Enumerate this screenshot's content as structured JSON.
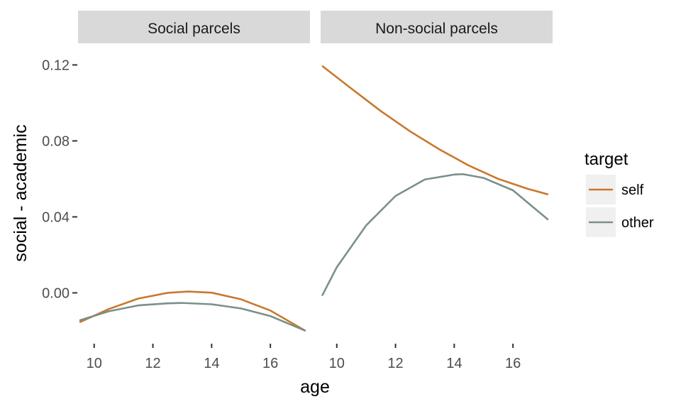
{
  "chart_data": {
    "type": "line",
    "xlabel": "age",
    "ylabel": "social - academic",
    "xlim": [
      9.45,
      17.35
    ],
    "ylim": [
      -0.026,
      0.131
    ],
    "x_ticks": [
      10,
      12,
      14,
      16
    ],
    "x_tick_labels": [
      "10",
      "12",
      "14",
      "16"
    ],
    "y_ticks": [
      0.0,
      0.04,
      0.08,
      0.12
    ],
    "y_tick_labels": [
      "0.00",
      "0.04",
      "0.08",
      "0.12"
    ],
    "grid": false,
    "legend": {
      "title": "target",
      "position": "right",
      "entries": [
        {
          "label": "self",
          "color": "#C8782F"
        },
        {
          "label": "other",
          "color": "#7A9088"
        }
      ]
    },
    "panels": [
      {
        "strip": "Social parcels",
        "series": [
          {
            "name": "self",
            "color": "#C8782F",
            "x": [
              9.5,
              10.5,
              11.5,
              12.5,
              13.2,
              14.0,
              15.0,
              16.0,
              17.2
            ],
            "y": [
              -0.0155,
              -0.0085,
              -0.003,
              0.0,
              0.0007,
              0.0001,
              -0.0034,
              -0.0093,
              -0.02
            ]
          },
          {
            "name": "other",
            "color": "#7A9088",
            "x": [
              9.5,
              10.5,
              11.5,
              12.5,
              13.0,
              14.0,
              15.0,
              16.0,
              17.2
            ],
            "y": [
              -0.0145,
              -0.0097,
              -0.0066,
              -0.0055,
              -0.0053,
              -0.006,
              -0.0082,
              -0.0122,
              -0.02
            ]
          }
        ]
      },
      {
        "strip": "Non-social parcels",
        "series": [
          {
            "name": "self",
            "color": "#C8782F",
            "x": [
              9.5,
              10.5,
              11.5,
              12.5,
              13.5,
              14.5,
              15.5,
              16.5,
              17.2
            ],
            "y": [
              0.1195,
              0.1075,
              0.0957,
              0.085,
              0.0755,
              0.067,
              0.06,
              0.0548,
              0.0518
            ]
          },
          {
            "name": "other",
            "color": "#7A9088",
            "x": [
              9.5,
              10.0,
              11.0,
              12.0,
              13.0,
              14.0,
              14.3,
              15.0,
              16.0,
              17.2
            ],
            "y": [
              -0.0015,
              0.0135,
              0.0355,
              0.051,
              0.0597,
              0.0623,
              0.0625,
              0.0605,
              0.054,
              0.0385
            ]
          }
        ]
      }
    ]
  },
  "colors": {
    "strip_background": "#D9D9D9",
    "legend_key_background": "#F0F0F0"
  }
}
